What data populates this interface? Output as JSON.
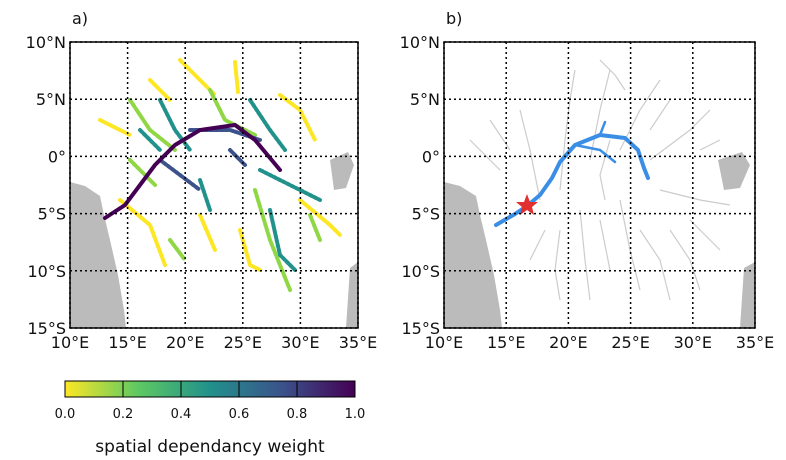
{
  "panels": [
    {
      "title": "a)",
      "xlim": [
        10,
        35
      ],
      "ylim": [
        -15,
        10
      ],
      "xticks": [
        {
          "value": 10,
          "label": "10°E"
        },
        {
          "value": 15,
          "label": "15°E"
        },
        {
          "value": 20,
          "label": "20°E"
        },
        {
          "value": 25,
          "label": "25°E"
        },
        {
          "value": 30,
          "label": "30°E"
        },
        {
          "value": 35,
          "label": "35°E"
        }
      ],
      "yticks": [
        {
          "value": 10,
          "label": "10°N"
        },
        {
          "value": 5,
          "label": "5°N"
        },
        {
          "value": 0,
          "label": "0°"
        },
        {
          "value": -5,
          "label": "5°S"
        },
        {
          "value": -10,
          "label": "10°S"
        },
        {
          "value": -15,
          "label": "15°S"
        }
      ]
    },
    {
      "title": "b)",
      "xlim": [
        10,
        35
      ],
      "ylim": [
        -15,
        10
      ],
      "xticks": [
        {
          "value": 10,
          "label": "10°E"
        },
        {
          "value": 15,
          "label": "15°E"
        },
        {
          "value": 20,
          "label": "20°E"
        },
        {
          "value": 25,
          "label": "25°E"
        },
        {
          "value": 30,
          "label": "30°E"
        },
        {
          "value": 35,
          "label": "35°E"
        }
      ],
      "yticks": [
        {
          "value": 10,
          "label": "10°N"
        },
        {
          "value": 5,
          "label": "5°N"
        },
        {
          "value": 0,
          "label": "0°"
        },
        {
          "value": -5,
          "label": "5°S"
        },
        {
          "value": -10,
          "label": "10°S"
        },
        {
          "value": -15,
          "label": "15°S"
        }
      ]
    }
  ],
  "colorbar": {
    "range": [
      0,
      1
    ],
    "label": "spatial dependancy weight",
    "ticks": [
      {
        "value": 0,
        "label": "0.0"
      },
      0.2,
      0.4,
      0.6,
      0.8,
      {
        "value": 1,
        "label": "1.0"
      }
    ],
    "colors": [
      "#fde725",
      "#5ec962",
      "#21918c",
      "#3b528b",
      "#440154"
    ]
  }
}
